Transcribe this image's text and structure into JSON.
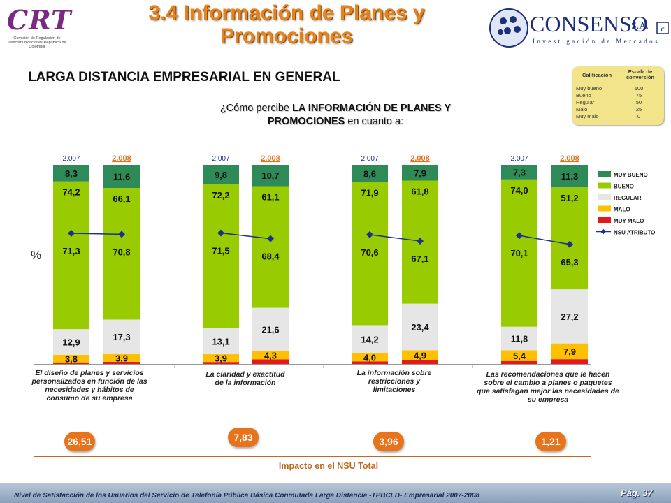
{
  "logos": {
    "crt": {
      "word": "CRT",
      "subtitle": "Comisión de Regulación de Telecomunicaciones República de Colombia"
    },
    "consenso": {
      "name": "CONSENSO",
      "suffix": "S.A.",
      "tagline": "Investigación de Mercados"
    }
  },
  "header": {
    "title_line1": "3.4 Información de Planes y",
    "title_line2": "Promociones"
  },
  "section_title": "LARGA DISTANCIA EMPRESARIAL EN GENERAL",
  "scale_box": {
    "col1_header": "Calificación",
    "col2_header": "Escala de conversión",
    "rows": [
      {
        "label": "Muy bueno",
        "value": "100"
      },
      {
        "label": "Bueno",
        "value": "75"
      },
      {
        "label": "Regular",
        "value": "50"
      },
      {
        "label": "Malo",
        "value": "25"
      },
      {
        "label": "Muy malo",
        "value": "0"
      }
    ]
  },
  "question": {
    "prefix": "¿Cómo percibe ",
    "bold1": "LA INFORMACIÓN DE PLANES Y",
    "bold2": "PROMOCIONES",
    "suffix": " en cuanto a:"
  },
  "colors": {
    "muy_bueno": "#2e8b57",
    "bueno": "#99cc00",
    "regular": "#e6e6e6",
    "malo": "#ffc000",
    "muy_malo": "#e31a1c",
    "nsu": "#1f2f8f",
    "year_2008": "#e8731a"
  },
  "chart_data": {
    "type": "bar",
    "stacked": true,
    "ylabel": "%",
    "ylim": [
      0,
      100
    ],
    "categories": [
      "El diseño de planes y servicios personalizados en función de las necesidades y hábitos de consumo de su empresa",
      "La claridad y exactitud de la información",
      "La información sobre restricciones y limitaciones",
      "Las recomendaciones que le hacen sobre el cambio a planes o paquetes que satisfagan mejor las necesidades de su empresa"
    ],
    "years": [
      "2.007",
      "2.008"
    ],
    "groups": [
      {
        "bars": [
          {
            "year": "2.007",
            "muy_bueno": "8,3",
            "bueno": "74,2",
            "regular": "12,9",
            "malo": "3,8",
            "muy_malo": "",
            "nsu": "71,3",
            "values": {
              "muy_bueno": 8.3,
              "bueno": 74.2,
              "regular": 12.9,
              "malo": 3.8,
              "muy_malo": 0.8,
              "nsu": 71.3
            }
          },
          {
            "year": "2.008",
            "muy_bueno": "11,6",
            "bueno": "66,1",
            "regular": "17,3",
            "malo": "3,9",
            "muy_malo": "",
            "nsu": "70,8",
            "values": {
              "muy_bueno": 11.6,
              "bueno": 66.1,
              "regular": 17.3,
              "malo": 3.9,
              "muy_malo": 1.1,
              "nsu": 70.8
            }
          }
        ]
      },
      {
        "bars": [
          {
            "year": "2.007",
            "muy_bueno": "9,8",
            "bueno": "72,2",
            "regular": "13,1",
            "malo": "3,9",
            "muy_malo": "",
            "nsu": "71,5",
            "values": {
              "muy_bueno": 9.8,
              "bueno": 72.2,
              "regular": 13.1,
              "malo": 3.9,
              "muy_malo": 1.0,
              "nsu": 71.5
            }
          },
          {
            "year": "2.008",
            "muy_bueno": "10,7",
            "bueno": "61,1",
            "regular": "21,6",
            "malo": "4,3",
            "muy_malo": "",
            "nsu": "68,4",
            "values": {
              "muy_bueno": 10.7,
              "bueno": 61.1,
              "regular": 21.6,
              "malo": 4.3,
              "muy_malo": 2.3,
              "nsu": 68.4
            }
          }
        ]
      },
      {
        "bars": [
          {
            "year": "2.007",
            "muy_bueno": "8,6",
            "bueno": "71,9",
            "regular": "14,2",
            "malo": "4,0",
            "muy_malo": "",
            "nsu": "70,6",
            "values": {
              "muy_bueno": 8.6,
              "bueno": 71.9,
              "regular": 14.2,
              "malo": 4.0,
              "muy_malo": 1.3,
              "nsu": 70.6
            }
          },
          {
            "year": "2.008",
            "muy_bueno": "7,9",
            "bueno": "61,8",
            "regular": "23,4",
            "malo": "4,9",
            "muy_malo": "",
            "nsu": "67,1",
            "values": {
              "muy_bueno": 7.9,
              "bueno": 61.8,
              "regular": 23.4,
              "malo": 4.9,
              "muy_malo": 2.0,
              "nsu": 67.1
            }
          }
        ]
      },
      {
        "bars": [
          {
            "year": "2.007",
            "muy_bueno": "7,3",
            "bueno": "74,0",
            "regular": "11,8",
            "malo": "5,4",
            "muy_malo": "",
            "nsu": "70,1",
            "values": {
              "muy_bueno": 7.3,
              "bueno": 74.0,
              "regular": 11.8,
              "malo": 5.4,
              "muy_malo": 1.5,
              "nsu": 70.1
            }
          },
          {
            "year": "2.008",
            "muy_bueno": "11,3",
            "bueno": "51,2",
            "regular": "27,2",
            "malo": "7,9",
            "muy_malo": "",
            "nsu": "65,3",
            "values": {
              "muy_bueno": 11.3,
              "bueno": 51.2,
              "regular": 27.2,
              "malo": 7.9,
              "muy_malo": 2.4,
              "nsu": 65.3
            }
          }
        ]
      }
    ],
    "legend": {
      "placement": "right",
      "items": [
        {
          "key": "muy_bueno",
          "label": "MUY BUENO"
        },
        {
          "key": "bueno",
          "label": "BUENO"
        },
        {
          "key": "regular",
          "label": "REGULAR"
        },
        {
          "key": "malo",
          "label": "MALO"
        },
        {
          "key": "muy_malo",
          "label": "MUY MALO"
        },
        {
          "key": "nsu",
          "label": "NSU ATRIBUTO"
        }
      ]
    },
    "impact": {
      "values": [
        "26,51",
        "7,83",
        "3,96",
        "1,21"
      ],
      "label": "Impacto en el NSU Total"
    }
  },
  "footer": {
    "text": "Nivel de Satisfacción de los Usuarios del Servicio de Telefonía Pública Básica Conmutada Larga Distancia -TPBCLD- Empresarial 2007-2008",
    "page": "Pág. 37"
  }
}
